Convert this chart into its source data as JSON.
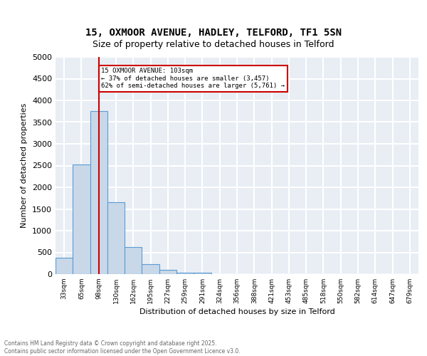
{
  "title_line1": "15, OXMOOR AVENUE, HADLEY, TELFORD, TF1 5SN",
  "title_line2": "Size of property relative to detached houses in Telford",
  "xlabel": "Distribution of detached houses by size in Telford",
  "ylabel": "Number of detached properties",
  "footer_line1": "Contains HM Land Registry data © Crown copyright and database right 2025.",
  "footer_line2": "Contains public sector information licensed under the Open Government Licence v3.0.",
  "bins": [
    "33sqm",
    "65sqm",
    "98sqm",
    "130sqm",
    "162sqm",
    "195sqm",
    "227sqm",
    "259sqm",
    "291sqm",
    "324sqm",
    "356sqm",
    "388sqm",
    "421sqm",
    "453sqm",
    "485sqm",
    "518sqm",
    "550sqm",
    "582sqm",
    "614sqm",
    "647sqm",
    "679sqm"
  ],
  "bar_values": [
    370,
    2530,
    3760,
    1650,
    620,
    230,
    100,
    40,
    40,
    0,
    0,
    0,
    0,
    0,
    0,
    0,
    0,
    0,
    0,
    0,
    0
  ],
  "bar_color": "#c8d8e8",
  "bar_edge_color": "#5b9bd5",
  "ylim": [
    0,
    5000
  ],
  "yticks": [
    0,
    500,
    1000,
    1500,
    2000,
    2500,
    3000,
    3500,
    4000,
    4500,
    5000
  ],
  "property_line_x": 2,
  "property_line_color": "#cc0000",
  "annotation_text": "15 OXMOOR AVENUE: 103sqm\n← 37% of detached houses are smaller (3,457)\n62% of semi-detached houses are larger (5,761) →",
  "annotation_box_color": "#cc0000",
  "background_color": "#e8eef4",
  "grid_color": "#ffffff",
  "title_fontsize": 10,
  "subtitle_fontsize": 9,
  "ylabel_fontsize": 8,
  "xlabel_fontsize": 8,
  "tick_fontsize": 8,
  "xtick_fontsize": 6.5,
  "footer_fontsize": 5.5
}
